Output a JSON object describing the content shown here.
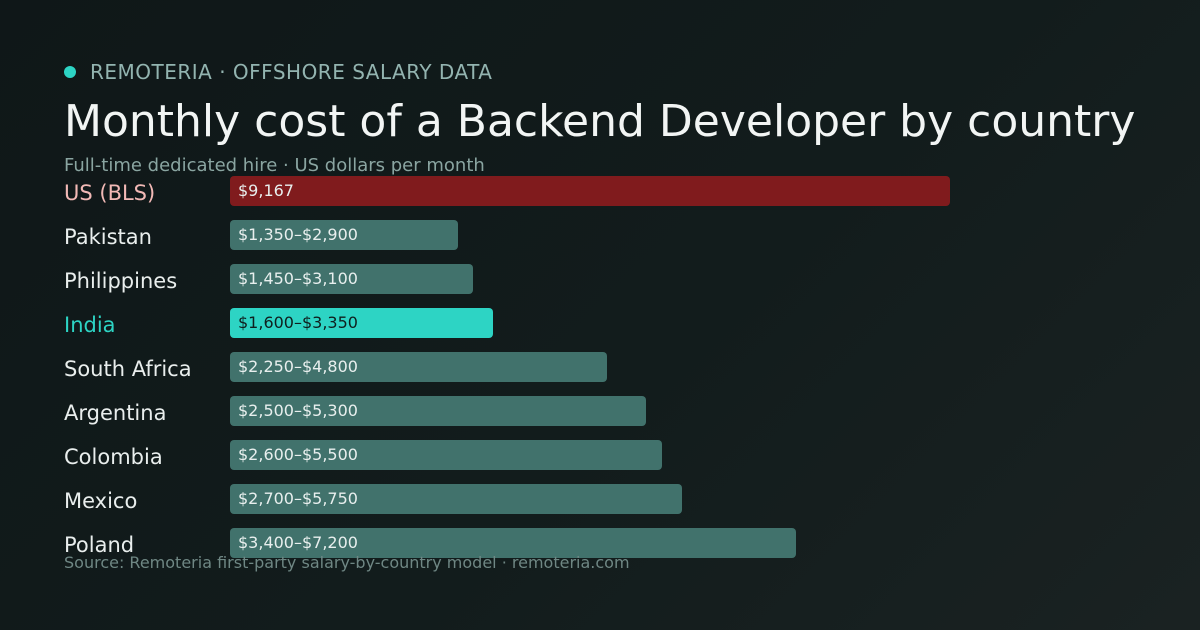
{
  "header": {
    "brand": "REMOTERIA · OFFSHORE SALARY DATA",
    "brand_dot_color": "#2dd4c4",
    "title": "Monthly cost of a Backend Developer by country",
    "subtitle": "Full-time dedicated hire · US dollars per month"
  },
  "footer": {
    "source": "Source: Remoteria first-party salary-by-country model · remoteria.com"
  },
  "colors": {
    "default_bar": "#41726c",
    "default_label": "#e9eeed",
    "default_value_text": "#e8efee",
    "us_bar": "#801b1d",
    "us_label": "#f2b9b6",
    "highlight_bar": "#2dd4c4",
    "highlight_label": "#2dd4c4",
    "highlight_value_text": "#0f1f1e"
  },
  "chart_data": {
    "type": "bar",
    "orientation": "horizontal",
    "unit": "USD per month",
    "xlim": [
      0,
      9167
    ],
    "grid": false,
    "categories": [
      "US (BLS)",
      "Pakistan",
      "Philippines",
      "India",
      "South Africa",
      "Argentina",
      "Colombia",
      "Mexico",
      "Poland"
    ],
    "value_labels": [
      "$9,167",
      "$1,350–$2,900",
      "$1,450–$3,100",
      "$1,600–$3,350",
      "$2,250–$4,800",
      "$2,500–$5,300",
      "$2,600–$5,500",
      "$2,700–$5,750",
      "$3,400–$7,200"
    ],
    "low": [
      9167,
      1350,
      1450,
      1600,
      2250,
      2500,
      2600,
      2700,
      3400
    ],
    "high": [
      9167,
      2900,
      3100,
      3350,
      4800,
      5300,
      5500,
      5750,
      7200
    ],
    "styles": [
      "us",
      "default",
      "default",
      "highlight",
      "default",
      "default",
      "default",
      "default",
      "default"
    ]
  }
}
